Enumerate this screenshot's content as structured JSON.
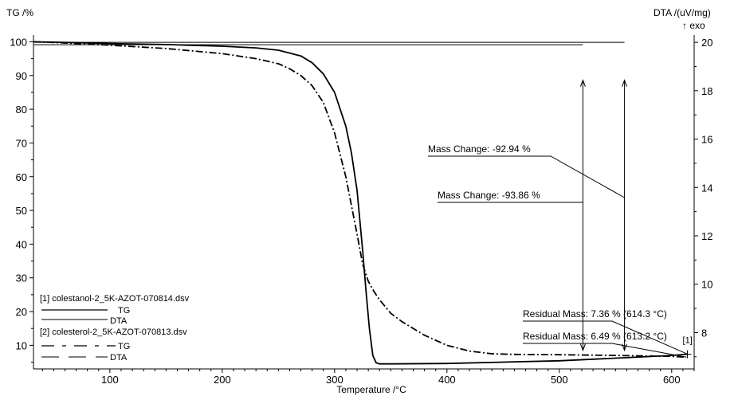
{
  "chart_data": {
    "type": "line",
    "xlabel": "Temperature /°C",
    "ylabel_left": "TG /%",
    "ylabel_right_line1": "DTA /(uV/mg)",
    "ylabel_right_line2": "↑ exo",
    "xlim": [
      32,
      620
    ],
    "ylim_left": [
      3,
      102
    ],
    "ylim_right": [
      6.5,
      20.3
    ],
    "x_ticks": [
      100,
      200,
      300,
      400,
      500,
      600
    ],
    "y_left_ticks": [
      10,
      20,
      30,
      40,
      50,
      60,
      70,
      80,
      90,
      100
    ],
    "y_right_ticks": [
      8,
      10,
      12,
      14,
      16,
      18,
      20
    ],
    "grid": false,
    "series": [
      {
        "name": "TG",
        "file": "colestanol-2_5K-AZOT-070814.dsv",
        "axis": "left",
        "style": "solid",
        "x": [
          32,
          50,
          100,
          150,
          200,
          230,
          250,
          270,
          280,
          290,
          300,
          310,
          315,
          320,
          325,
          328,
          331,
          334,
          337,
          340,
          350,
          400,
          450,
          500,
          550,
          600,
          614
        ],
        "y": [
          100,
          99.9,
          99.5,
          99.2,
          98.7,
          98.2,
          97.5,
          95.8,
          93.8,
          90.5,
          85,
          75,
          67,
          56,
          38,
          26,
          15,
          7,
          4.8,
          4.5,
          4.5,
          4.6,
          5.0,
          5.4,
          6.2,
          7.0,
          7.36
        ]
      },
      {
        "name": "TG",
        "file": "colesterol-2_5K-AZOT-070813.dsv",
        "axis": "left",
        "style": "dash-dot",
        "x": [
          32,
          50,
          100,
          150,
          200,
          230,
          250,
          260,
          270,
          280,
          290,
          300,
          310,
          320,
          325,
          330,
          335,
          340,
          350,
          360,
          380,
          400,
          420,
          440,
          460,
          500,
          550,
          600,
          613
        ],
        "y": [
          100,
          99.8,
          99,
          98,
          96.5,
          95,
          93.5,
          92,
          90,
          87,
          82,
          73,
          60,
          43,
          34,
          29,
          26,
          23.5,
          19.5,
          17,
          13,
          10,
          8.3,
          7.5,
          7.3,
          7.2,
          7.0,
          6.7,
          6.49
        ]
      },
      {
        "name": "DTA",
        "file": "colestanol-2_5K-AZOT-070814.dsv",
        "axis": "right",
        "style": "solid",
        "x": [
          32,
          558
        ],
        "y": [
          20.0,
          20.0
        ]
      },
      {
        "name": "DTA",
        "file": "colesterol-2_5K-AZOT-070813.dsv",
        "axis": "right",
        "style": "dashed",
        "x": [
          32,
          521
        ],
        "y": [
          19.9,
          19.9
        ]
      }
    ],
    "legend": {
      "position": "bottom-left",
      "groups": [
        {
          "header": "[1] colestanol-2_5K-AZOT-070814.dsv",
          "entries": [
            "TG",
            "DTA"
          ]
        },
        {
          "header": "[2] colesterol-2_5K-AZOT-070813.dsv",
          "entries": [
            "TG",
            "DTA"
          ]
        }
      ]
    },
    "annotations": [
      {
        "text": "Mass Change: -92.94 %",
        "x_temp": 558,
        "y_from": 88.6,
        "y_to": 8.5
      },
      {
        "text": "Mass Change: -93.86 %",
        "x_temp": 521,
        "y_from": 88.6,
        "y_to": 8.5
      },
      {
        "text": "Residual Mass: 7.36 % (614.3 °C)",
        "x_temp": 614.3,
        "y_value": 7.36
      },
      {
        "text": "Residual Mass: 6.49 % (613.2 °C)",
        "x_temp": 613.2,
        "y_value": 6.49
      }
    ],
    "end_marker": "[1]"
  }
}
